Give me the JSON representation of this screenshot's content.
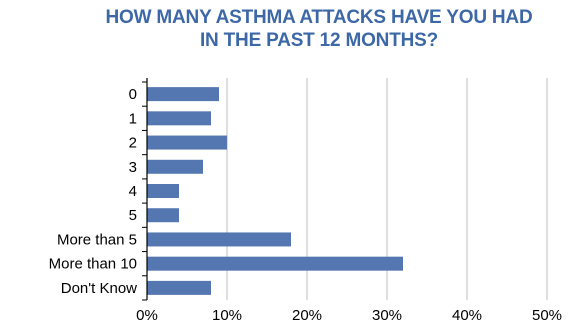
{
  "chart_data": {
    "type": "bar",
    "orientation": "horizontal",
    "title": "HOW MANY ASTHMA ATTACKS HAVE YOU HAD\nIN THE PAST 12 MONTHS?",
    "categories": [
      "0",
      "1",
      "2",
      "3",
      "4",
      "5",
      "More than 5",
      "More than 10",
      "Don't Know"
    ],
    "values": [
      9,
      8,
      10,
      7,
      4,
      4,
      18,
      32,
      8
    ],
    "x_ticks": [
      "0%",
      "10%",
      "20%",
      "30%",
      "40%",
      "50%"
    ],
    "xlim": [
      0,
      50
    ],
    "grid": true,
    "bar_color": "#5577b1",
    "title_color": "#3d68a7",
    "grid_color": "#bcbcbc"
  }
}
